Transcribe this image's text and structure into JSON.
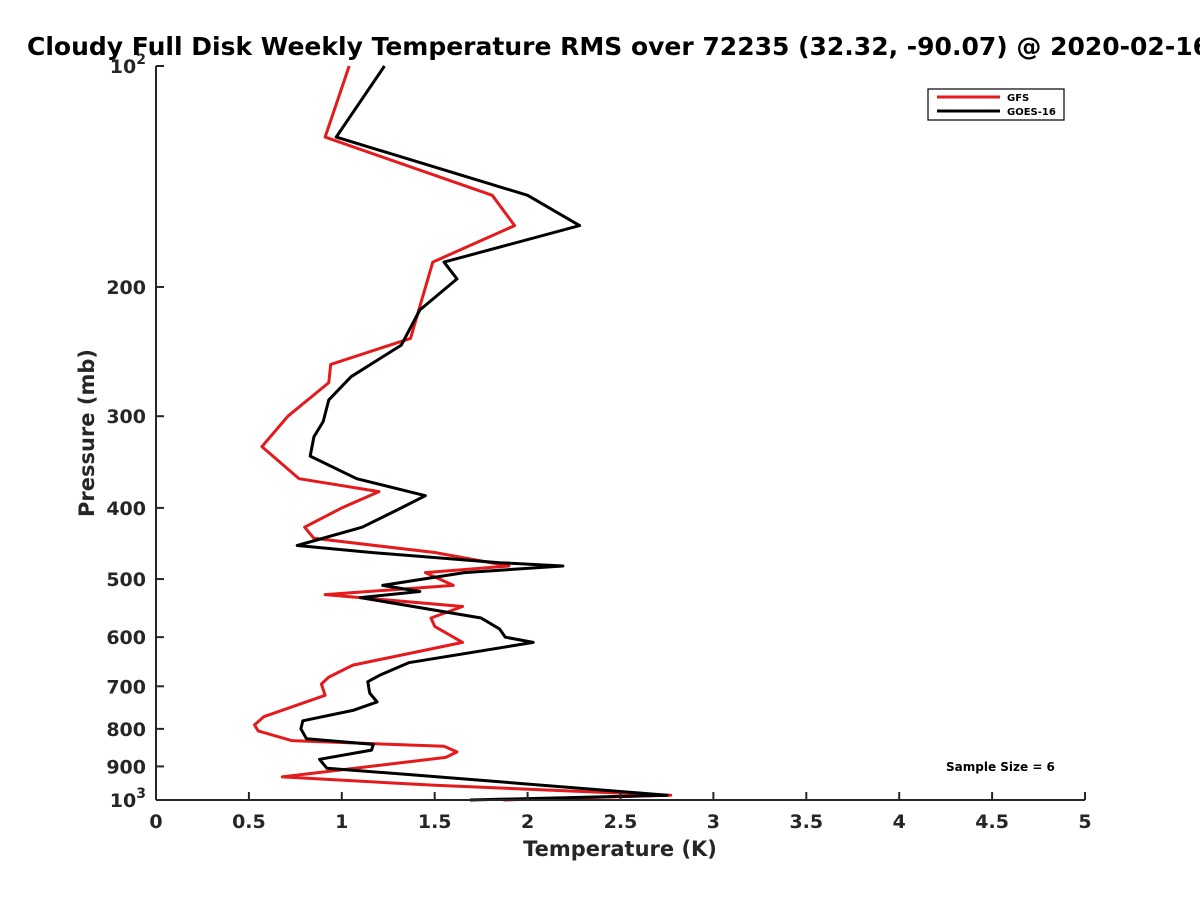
{
  "chart_data": {
    "type": "line",
    "title": "Cloudy Full Disk Weekly Temperature RMS over 72235 (32.32, -90.07) @ 2020-02-16",
    "xlabel": "Temperature (K)",
    "ylabel": "Pressure (mb)",
    "xlim": [
      0,
      5
    ],
    "ylim": [
      1000,
      100
    ],
    "y_scale": "log",
    "y_reversed": true,
    "x_ticks": [
      "0",
      "0.5",
      "1",
      "1.5",
      "2",
      "2.5",
      "3",
      "3.5",
      "4",
      "4.5",
      "5"
    ],
    "y_ticks": [
      {
        "value": 100,
        "base": "10",
        "exp": "2"
      },
      {
        "value": 200,
        "label": "200"
      },
      {
        "value": 300,
        "label": "300"
      },
      {
        "value": 400,
        "label": "400"
      },
      {
        "value": 500,
        "label": "500"
      },
      {
        "value": 600,
        "label": "600"
      },
      {
        "value": 700,
        "label": "700"
      },
      {
        "value": 800,
        "label": "800"
      },
      {
        "value": 900,
        "label": "900"
      },
      {
        "value": 1000,
        "base": "10",
        "exp": "3"
      }
    ],
    "grid": false,
    "legend_position": "top-right",
    "series": [
      {
        "name": "GFS",
        "color": "#e41a1c",
        "points": [
          [
            1.04,
            100
          ],
          [
            0.91,
            125
          ],
          [
            1.81,
            150
          ],
          [
            1.93,
            165
          ],
          [
            1.49,
            185
          ],
          [
            1.37,
            235
          ],
          [
            0.94,
            255
          ],
          [
            0.93,
            270
          ],
          [
            0.71,
            300
          ],
          [
            0.57,
            330
          ],
          [
            0.77,
            365
          ],
          [
            1.2,
            380
          ],
          [
            1.0,
            400
          ],
          [
            0.8,
            425
          ],
          [
            0.85,
            440
          ],
          [
            1.5,
            460
          ],
          [
            1.9,
            480
          ],
          [
            1.45,
            490
          ],
          [
            1.6,
            510
          ],
          [
            0.91,
            525
          ],
          [
            1.65,
            545
          ],
          [
            1.48,
            565
          ],
          [
            1.5,
            580
          ],
          [
            1.65,
            610
          ],
          [
            1.06,
            655
          ],
          [
            0.93,
            680
          ],
          [
            0.89,
            695
          ],
          [
            0.91,
            720
          ],
          [
            0.58,
            770
          ],
          [
            0.53,
            790
          ],
          [
            0.55,
            805
          ],
          [
            0.73,
            830
          ],
          [
            1.55,
            845
          ],
          [
            1.62,
            860
          ],
          [
            1.56,
            875
          ],
          [
            0.68,
            930
          ],
          [
            1.5,
            955
          ],
          [
            2.77,
            985
          ],
          [
            1.87,
            1000
          ]
        ]
      },
      {
        "name": "GOES-16",
        "color": "#000000",
        "points": [
          [
            1.23,
            100
          ],
          [
            0.97,
            125
          ],
          [
            2.0,
            150
          ],
          [
            2.28,
            165
          ],
          [
            1.55,
            185
          ],
          [
            1.62,
            195
          ],
          [
            1.42,
            215
          ],
          [
            1.32,
            240
          ],
          [
            1.05,
            265
          ],
          [
            0.93,
            285
          ],
          [
            0.9,
            305
          ],
          [
            0.85,
            320
          ],
          [
            0.83,
            340
          ],
          [
            1.08,
            365
          ],
          [
            1.45,
            385
          ],
          [
            1.32,
            400
          ],
          [
            1.11,
            425
          ],
          [
            0.76,
            450
          ],
          [
            1.16,
            460
          ],
          [
            1.85,
            475
          ],
          [
            2.19,
            480
          ],
          [
            1.66,
            490
          ],
          [
            1.22,
            510
          ],
          [
            1.42,
            520
          ],
          [
            1.1,
            530
          ],
          [
            1.75,
            565
          ],
          [
            1.85,
            585
          ],
          [
            1.88,
            600
          ],
          [
            2.03,
            610
          ],
          [
            1.36,
            650
          ],
          [
            1.21,
            675
          ],
          [
            1.14,
            690
          ],
          [
            1.15,
            715
          ],
          [
            1.19,
            735
          ],
          [
            1.06,
            755
          ],
          [
            0.79,
            780
          ],
          [
            0.78,
            800
          ],
          [
            0.81,
            825
          ],
          [
            1.17,
            840
          ],
          [
            1.16,
            855
          ],
          [
            0.88,
            880
          ],
          [
            0.92,
            905
          ],
          [
            1.4,
            925
          ],
          [
            2.75,
            985
          ],
          [
            1.69,
            1000
          ]
        ]
      }
    ],
    "annotation": "Sample Size = 6"
  }
}
